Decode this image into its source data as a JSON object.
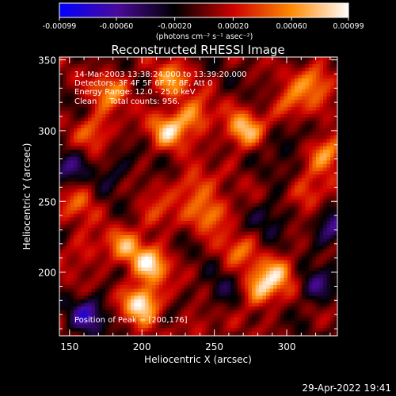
{
  "chart_data": {
    "type": "heatmap",
    "title": "Reconstructed RHESSI Image",
    "xlabel": "Heliocentric X (arcsec)",
    "ylabel": "Heliocentric Y (arcsec)",
    "xlim": [
      143,
      335
    ],
    "ylim": [
      155,
      352
    ],
    "x_ticks": [
      150,
      200,
      250,
      300
    ],
    "y_ticks": [
      200,
      250,
      300,
      350
    ],
    "colorbar": {
      "ticks": [
        "-0.00099",
        "-0.00060",
        "-0.00020",
        "0.00020",
        "0.00060",
        "0.00099"
      ],
      "tick_values": [
        -0.00099,
        -0.0006,
        -0.0002,
        0.0002,
        0.0006,
        0.00099
      ],
      "range": [
        -0.00099,
        0.00099
      ],
      "unit_label": "(photons cm⁻² s⁻¹ asec⁻²)",
      "colors": [
        "#0000ff",
        "#4a0a9a",
        "#000000",
        "#cc0000",
        "#ff8800",
        "#ffffff"
      ]
    },
    "info_lines": [
      "14-Mar-2003 13:38:24.000 to 13:39:20.000",
      "Detectors: 3F 4F 5F 6F 7F 8F, Att 0",
      "Energy Range: 12.0 - 25.0 keV",
      "Clean     Total counts: 956."
    ],
    "peak_label": "Position of Peak = [200,176]",
    "peak": [
      200,
      176
    ],
    "blobs": [
      {
        "x": 200,
        "y": 178,
        "v": 0.00099
      },
      {
        "x": 206,
        "y": 205,
        "v": 0.0008
      },
      {
        "x": 188,
        "y": 218,
        "v": 0.00055
      },
      {
        "x": 282,
        "y": 188,
        "v": 0.00075
      },
      {
        "x": 295,
        "y": 200,
        "v": 0.00055
      },
      {
        "x": 218,
        "y": 300,
        "v": 0.0007
      },
      {
        "x": 236,
        "y": 310,
        "v": 0.0006
      },
      {
        "x": 168,
        "y": 300,
        "v": 0.0005
      },
      {
        "x": 178,
        "y": 328,
        "v": 0.00055
      },
      {
        "x": 220,
        "y": 335,
        "v": 0.0006
      },
      {
        "x": 270,
        "y": 300,
        "v": 0.00075
      },
      {
        "x": 248,
        "y": 242,
        "v": 0.0006
      },
      {
        "x": 235,
        "y": 260,
        "v": 0.0005
      },
      {
        "x": 302,
        "y": 318,
        "v": 0.0005
      },
      {
        "x": 320,
        "y": 335,
        "v": 0.0006
      },
      {
        "x": 328,
        "y": 285,
        "v": 0.00065
      },
      {
        "x": 315,
        "y": 255,
        "v": 0.00045
      },
      {
        "x": 157,
        "y": 250,
        "v": 0.0004
      },
      {
        "x": 267,
        "y": 215,
        "v": 0.0004
      },
      {
        "x": 160,
        "y": 215,
        "v": 0.0003
      },
      {
        "x": 210,
        "y": 240,
        "v": 0.00035
      },
      {
        "x": 240,
        "y": 160,
        "v": 0.00025
      },
      {
        "x": 163,
        "y": 170,
        "v": -0.0006
      },
      {
        "x": 330,
        "y": 230,
        "v": -0.0005
      },
      {
        "x": 320,
        "y": 190,
        "v": -0.00045
      },
      {
        "x": 150,
        "y": 275,
        "v": -0.0004
      },
      {
        "x": 290,
        "y": 240,
        "v": -0.00035
      },
      {
        "x": 180,
        "y": 270,
        "v": -0.0003
      },
      {
        "x": 300,
        "y": 290,
        "v": -0.0003
      },
      {
        "x": 255,
        "y": 185,
        "v": -0.0003
      }
    ]
  },
  "footer": {
    "timestamp": "29-Apr-2022 19:41"
  }
}
